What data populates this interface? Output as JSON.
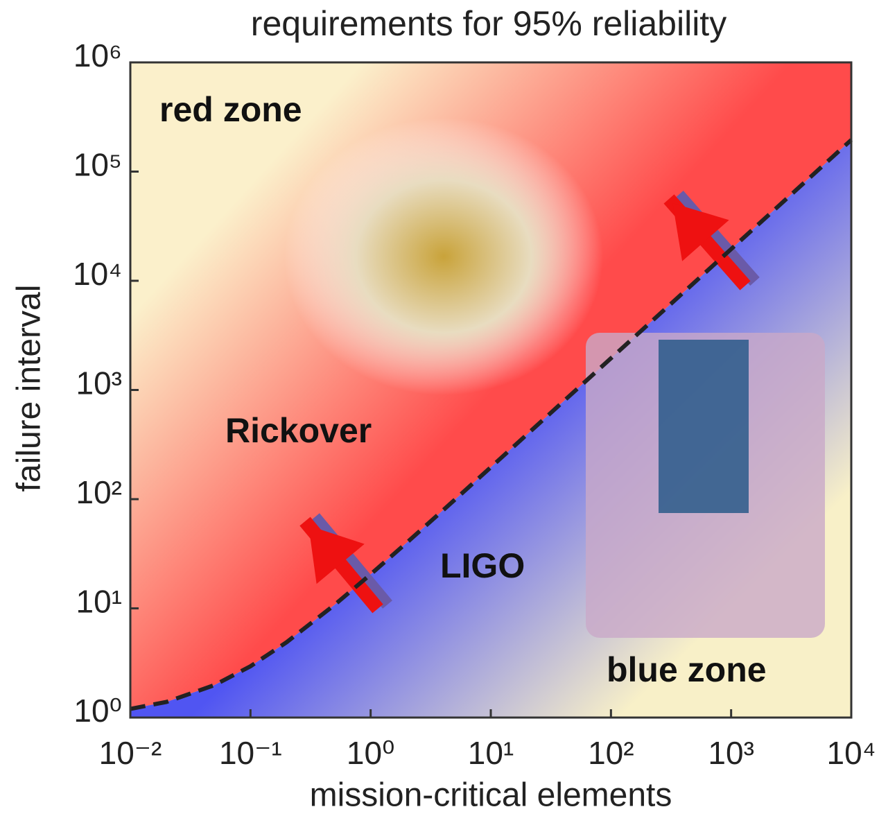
{
  "chart_data": {
    "type": "line",
    "title": "requirements for 95% reliability",
    "xlabel": "mission-critical elements",
    "ylabel": "failure interval",
    "xscale": "log",
    "yscale": "log",
    "xlim": [
      0.01,
      10000
    ],
    "ylim": [
      1,
      1000000
    ],
    "xticks": [
      {
        "value": 0.01,
        "label": "10⁻²"
      },
      {
        "value": 0.1,
        "label": "10⁻¹"
      },
      {
        "value": 1,
        "label": "10⁰"
      },
      {
        "value": 10,
        "label": "10¹"
      },
      {
        "value": 100,
        "label": "10²"
      },
      {
        "value": 1000,
        "label": "10³"
      },
      {
        "value": 10000,
        "label": "10⁴"
      }
    ],
    "yticks": [
      {
        "value": 1,
        "label": "10⁰"
      },
      {
        "value": 10,
        "label": "10¹"
      },
      {
        "value": 100,
        "label": "10²"
      },
      {
        "value": 1000,
        "label": "10³"
      },
      {
        "value": 10000,
        "label": "10⁴"
      },
      {
        "value": 100000,
        "label": "10⁵"
      },
      {
        "value": 1000000,
        "label": "10⁶"
      }
    ],
    "x": [
      0.01,
      0.02,
      0.05,
      0.1,
      0.2,
      0.5,
      1,
      2,
      5,
      10,
      100,
      1000,
      10000
    ],
    "series": [
      {
        "color": "#222222",
        "values": [
          1.2,
          1.39,
          1.98,
          2.95,
          4.9,
          10.75,
          20.5,
          40,
          98.5,
          196,
          1951,
          19500,
          195000
        ]
      }
    ],
    "annotations": [
      "red zone",
      "Rickover",
      "LIGO",
      "blue zone"
    ]
  }
}
